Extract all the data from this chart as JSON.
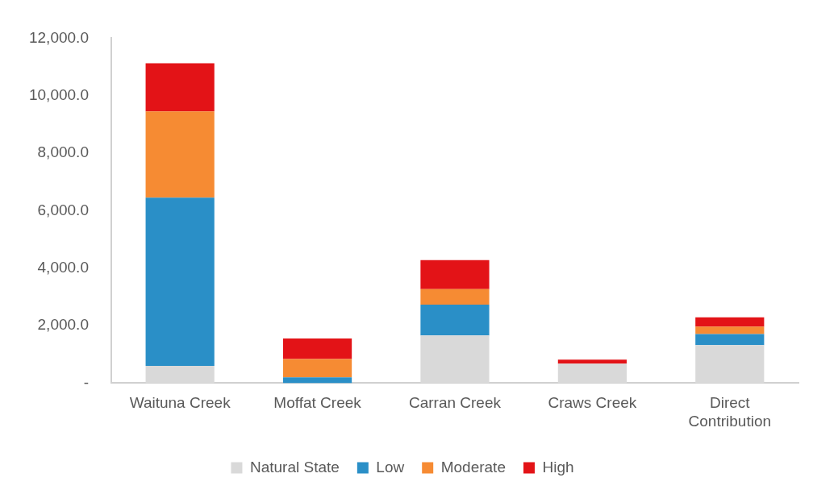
{
  "chart_data": {
    "type": "bar",
    "stacked": true,
    "categories": [
      "Waituna Creek",
      "Moffat Creek",
      "Carran Creek",
      "Craws Creek",
      "Direct Contribution"
    ],
    "series": [
      {
        "name": "Natural State",
        "color": "#d9d9d9",
        "values": [
          600,
          0,
          1660,
          680,
          1320
        ]
      },
      {
        "name": "Low",
        "color": "#2a8fc7",
        "values": [
          5850,
          200,
          1070,
          0,
          390
        ]
      },
      {
        "name": "Moderate",
        "color": "#f68b33",
        "values": [
          3000,
          640,
          540,
          0,
          260
        ]
      },
      {
        "name": "High",
        "color": "#e31317",
        "values": [
          1680,
          710,
          1010,
          135,
          320
        ]
      }
    ],
    "ylim": [
      0,
      12000
    ],
    "yticks": [
      {
        "value": 0,
        "label": "-"
      },
      {
        "value": 2000,
        "label": "2,000.0"
      },
      {
        "value": 4000,
        "label": "4,000.0"
      },
      {
        "value": 6000,
        "label": "6,000.0"
      },
      {
        "value": 8000,
        "label": "8,000.0"
      },
      {
        "value": 10000,
        "label": "10,000.0"
      },
      {
        "value": 12000,
        "label": "12,000.0"
      }
    ],
    "grid": false,
    "legend": "bottom"
  }
}
